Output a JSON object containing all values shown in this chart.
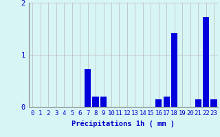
{
  "hours": [
    0,
    1,
    2,
    3,
    4,
    5,
    6,
    7,
    8,
    9,
    10,
    11,
    12,
    13,
    14,
    15,
    16,
    17,
    18,
    19,
    20,
    21,
    22,
    23
  ],
  "values": [
    0,
    0,
    0,
    0,
    0,
    0,
    0,
    0.72,
    0.2,
    0.2,
    0,
    0,
    0,
    0,
    0,
    0,
    0.15,
    0.2,
    1.42,
    0,
    0,
    0.15,
    1.72,
    0.15
  ],
  "bar_color": "#0000dd",
  "background_color": "#d8f5f5",
  "grid_color": "#b8b8b8",
  "xlabel": "Précipitations 1h ( mm )",
  "ylim": [
    0,
    2.0
  ],
  "yticks": [
    0,
    1,
    2
  ],
  "xlim": [
    -0.5,
    23.5
  ],
  "xlabel_color": "#0000cc",
  "tick_color": "#0000cc",
  "xlabel_fontsize": 7.5,
  "tick_fontsize": 6.5
}
